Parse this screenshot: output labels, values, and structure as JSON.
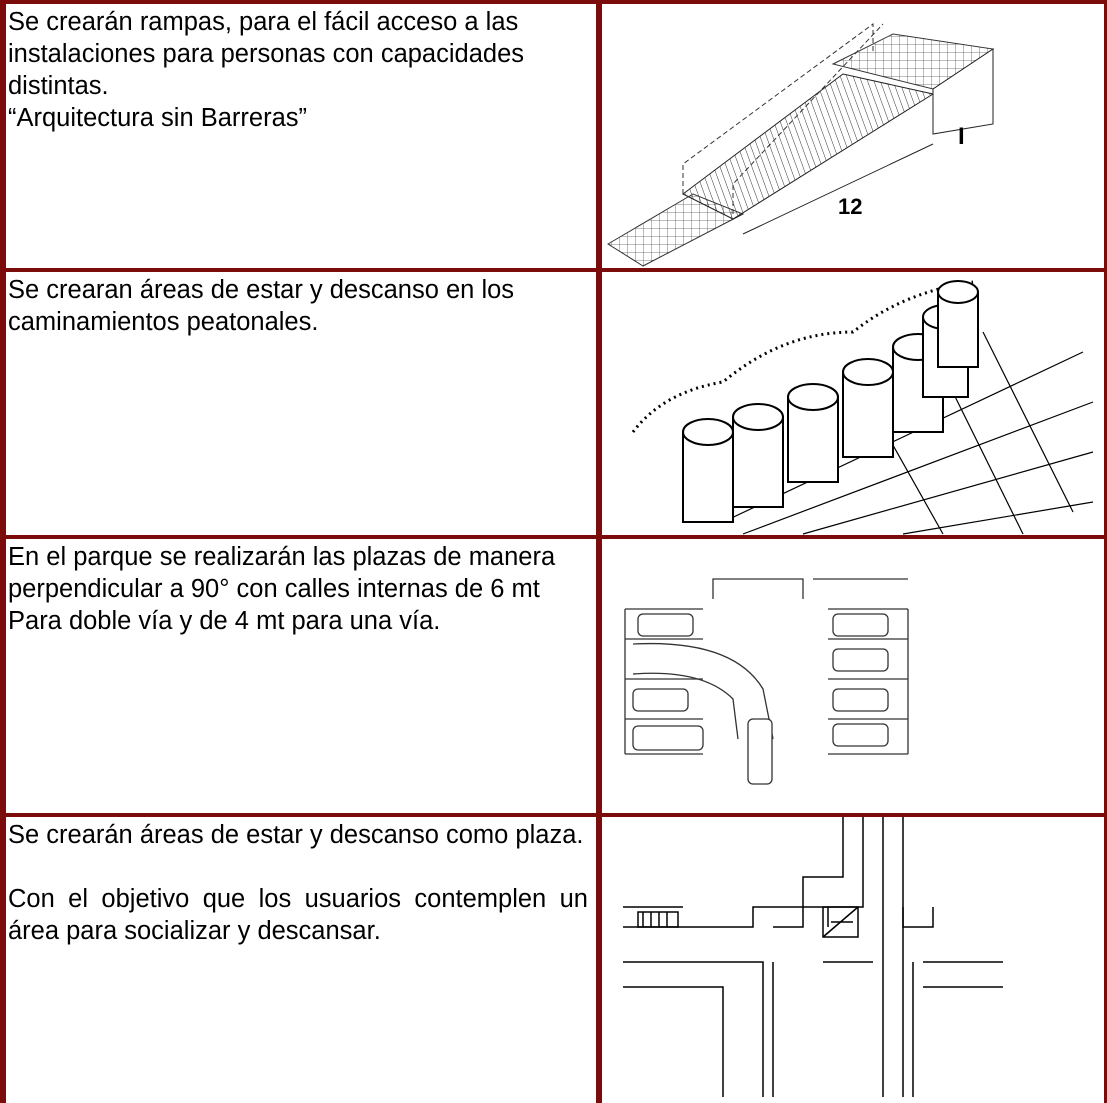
{
  "table": {
    "rows": [
      {
        "paragraphs": [
          "Se crearán rampas, para el fácil acceso a las instalaciones para personas con capacidades distintas.",
          "“Arquitectura sin Barreras”"
        ],
        "figure_labels": [
          "12",
          "I"
        ]
      },
      {
        "paragraphs": [
          "Se crearan áreas de estar y descanso en los caminamientos peatonales."
        ]
      },
      {
        "paragraphs": [
          "En el parque se realizarán las  plazas de manera perpendicular a 90° con calles internas de 6 mt Para doble vía y de 4 mt para una vía."
        ]
      },
      {
        "paragraphs": [
          "Se crearán áreas de estar y descanso como plaza.",
          "Con el objetivo que los usuarios contemplen un área para socializar y descansar."
        ]
      }
    ]
  }
}
